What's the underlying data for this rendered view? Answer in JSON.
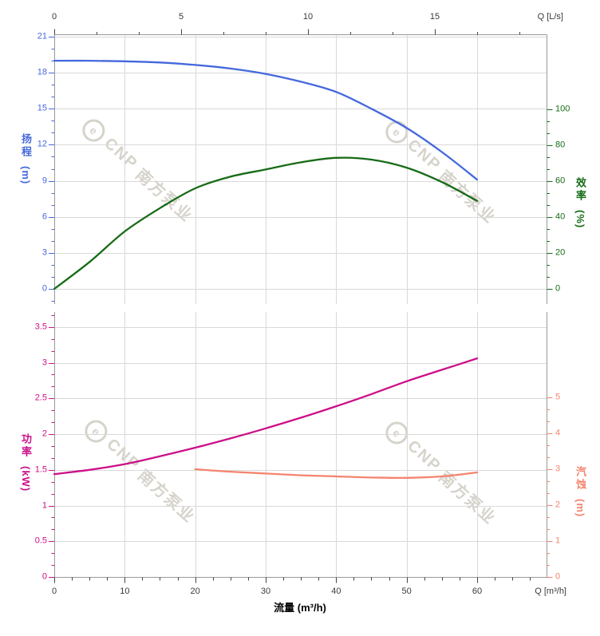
{
  "colors": {
    "head": "#4468dd",
    "efficiency": "#176b17",
    "power": "#cc1088",
    "npsh": "#f5846e",
    "grid": "#d9d9d9",
    "axis_line": "#9a9a9a",
    "axis_tick": "#444444",
    "axis_label": "#3a3a3a",
    "watermark": "#b6b0a2"
  },
  "watermark": {
    "logo": "e",
    "brand": "CNP",
    "name": "南方泵业"
  },
  "axes": {
    "top": {
      "unit_label": "Q [L/s]",
      "ticks": [
        0,
        5,
        10,
        15
      ]
    },
    "bottom": {
      "unit_label": "Q [m³/h]",
      "title": "流量 (m³/h)",
      "ticks": [
        0,
        10,
        20,
        30,
        40,
        50,
        60
      ]
    },
    "head": {
      "title": "扬程",
      "unit": "(m)",
      "ticks": [
        21,
        18,
        15,
        12,
        9,
        6,
        3,
        0
      ]
    },
    "efficiency": {
      "title": "效率",
      "unit": "(%)",
      "ticks": [
        100,
        80,
        60,
        40,
        20,
        0
      ]
    },
    "power": {
      "title": "功率",
      "unit": "(kW)",
      "ticks": [
        3.5,
        3,
        2.5,
        2,
        1.5,
        1,
        0.5,
        0
      ]
    },
    "npsh": {
      "title": "汽蚀",
      "unit": "(m)",
      "ticks": [
        5,
        4,
        3,
        2,
        1,
        0
      ]
    }
  },
  "chart_data": [
    {
      "type": "line",
      "title": "扬程 / 效率 vs 流量",
      "xlabel": "流量 (m³/h)",
      "x_top_label": "Q [L/s]",
      "xlim": [
        0,
        70
      ],
      "ylim_left": [
        0,
        21
      ],
      "ylim_right": [
        0,
        100
      ],
      "grid": true,
      "series": [
        {
          "name": "扬程",
          "unit": "m",
          "axis": "head",
          "color": "#4468dd",
          "points": [
            [
              0,
              19.0
            ],
            [
              5,
              19.0
            ],
            [
              10,
              18.95
            ],
            [
              15,
              18.85
            ],
            [
              20,
              18.65
            ],
            [
              25,
              18.35
            ],
            [
              30,
              17.9
            ],
            [
              35,
              17.25
            ],
            [
              40,
              16.4
            ],
            [
              45,
              15.0
            ],
            [
              50,
              13.4
            ],
            [
              55,
              11.4
            ],
            [
              60,
              9.1
            ]
          ]
        },
        {
          "name": "效率",
          "unit": "%",
          "axis": "efficiency",
          "color": "#176b17",
          "points": [
            [
              0,
              0
            ],
            [
              5,
              15
            ],
            [
              10,
              32
            ],
            [
              15,
              45
            ],
            [
              20,
              56
            ],
            [
              25,
              62.5
            ],
            [
              30,
              66.5
            ],
            [
              35,
              70.5
            ],
            [
              40,
              73
            ],
            [
              45,
              72
            ],
            [
              50,
              67.5
            ],
            [
              55,
              59.5
            ],
            [
              60,
              49
            ]
          ]
        }
      ]
    },
    {
      "type": "line",
      "title": "功率 / 汽蚀 vs 流量",
      "xlabel": "流量 (m³/h)",
      "xlim": [
        0,
        70
      ],
      "ylim_left": [
        0,
        3.5
      ],
      "ylim_right": [
        0,
        5
      ],
      "grid": true,
      "series": [
        {
          "name": "功率",
          "unit": "kW",
          "axis": "power",
          "color": "#cc1088",
          "points": [
            [
              0,
              1.44
            ],
            [
              5,
              1.5
            ],
            [
              10,
              1.58
            ],
            [
              15,
              1.69
            ],
            [
              20,
              1.81
            ],
            [
              25,
              1.94
            ],
            [
              30,
              2.08
            ],
            [
              35,
              2.23
            ],
            [
              40,
              2.39
            ],
            [
              45,
              2.56
            ],
            [
              50,
              2.74
            ],
            [
              55,
              2.9
            ],
            [
              60,
              3.06
            ]
          ]
        },
        {
          "name": "汽蚀",
          "unit": "m",
          "axis": "npsh",
          "color": "#f5846e",
          "points": [
            [
              20,
              3.0
            ],
            [
              25,
              2.93
            ],
            [
              30,
              2.88
            ],
            [
              35,
              2.83
            ],
            [
              40,
              2.8
            ],
            [
              45,
              2.77
            ],
            [
              50,
              2.76
            ],
            [
              55,
              2.8
            ],
            [
              60,
              2.91
            ]
          ]
        }
      ]
    }
  ]
}
